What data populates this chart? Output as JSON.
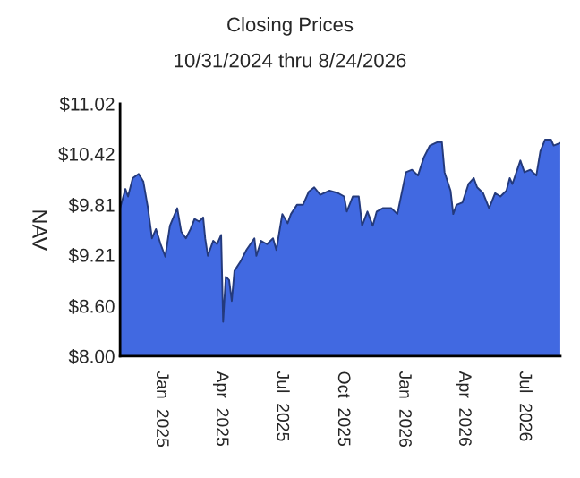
{
  "chart_data": {
    "type": "area",
    "title": "Closing Prices",
    "subtitle": "10/31/2024 thru 8/24/2026",
    "ylabel": "NAV",
    "x": [
      "2024-10-31",
      "2024-11-08",
      "2024-11-12",
      "2024-11-19",
      "2024-11-28",
      "2024-12-05",
      "2024-12-12",
      "2024-12-18",
      "2024-12-24",
      "2024-12-31",
      "2025-01-07",
      "2025-01-14",
      "2025-01-25",
      "2025-01-31",
      "2025-02-07",
      "2025-02-14",
      "2025-02-20",
      "2025-02-27",
      "2025-03-05",
      "2025-03-08",
      "2025-03-12",
      "2025-03-20",
      "2025-03-26",
      "2025-04-01",
      "2025-04-04",
      "2025-04-08",
      "2025-04-13",
      "2025-04-17",
      "2025-04-21",
      "2025-04-30",
      "2025-05-09",
      "2025-05-21",
      "2025-05-24",
      "2025-05-31",
      "2025-06-09",
      "2025-06-18",
      "2025-06-23",
      "2025-07-02",
      "2025-07-10",
      "2025-07-15",
      "2025-07-24",
      "2025-08-02",
      "2025-08-11",
      "2025-08-19",
      "2025-08-28",
      "2025-09-11",
      "2025-09-24",
      "2025-10-03",
      "2025-10-07",
      "2025-10-16",
      "2025-10-25",
      "2025-10-30",
      "2025-11-07",
      "2025-11-15",
      "2025-11-21",
      "2025-11-30",
      "2025-12-13",
      "2025-12-22",
      "2026-01-04",
      "2026-01-13",
      "2026-01-22",
      "2026-01-31",
      "2026-02-09",
      "2026-02-20",
      "2026-02-27",
      "2026-03-03",
      "2026-03-12",
      "2026-03-16",
      "2026-03-21",
      "2026-03-30",
      "2026-04-08",
      "2026-04-16",
      "2026-04-21",
      "2026-04-30",
      "2026-05-09",
      "2026-05-18",
      "2026-05-26",
      "2026-06-04",
      "2026-06-09",
      "2026-06-13",
      "2026-06-25",
      "2026-07-01",
      "2026-07-10",
      "2026-07-19",
      "2026-07-25",
      "2026-08-01",
      "2026-08-10",
      "2026-08-14",
      "2026-08-24"
    ],
    "series": [
      {
        "color": "#4169e1",
        "values": [
          9.77,
          10.0,
          9.91,
          10.13,
          10.18,
          10.09,
          9.77,
          9.41,
          9.52,
          9.34,
          9.19,
          9.56,
          9.77,
          9.49,
          9.41,
          9.52,
          9.64,
          9.61,
          9.66,
          9.41,
          9.2,
          9.38,
          9.34,
          9.45,
          8.41,
          8.95,
          8.91,
          8.66,
          9.02,
          9.13,
          9.27,
          9.41,
          9.2,
          9.38,
          9.34,
          9.41,
          9.27,
          9.7,
          9.59,
          9.7,
          9.81,
          9.81,
          9.97,
          10.02,
          9.93,
          9.98,
          9.95,
          9.91,
          9.73,
          9.91,
          9.91,
          9.56,
          9.73,
          9.56,
          9.73,
          9.77,
          9.77,
          9.7,
          10.2,
          10.23,
          10.16,
          10.38,
          10.52,
          10.56,
          10.56,
          10.2,
          9.98,
          9.7,
          9.81,
          9.84,
          10.06,
          10.13,
          10.02,
          9.95,
          9.77,
          9.95,
          9.91,
          9.98,
          10.13,
          10.06,
          10.34,
          10.2,
          10.23,
          10.16,
          10.45,
          10.59,
          10.59,
          10.52,
          10.55
        ]
      }
    ],
    "xlim": [
      "2024-10-31",
      "2026-08-24"
    ],
    "xticks": [
      {
        "value": "2025-01-01",
        "label": "Jan  2025"
      },
      {
        "value": "2025-04-01",
        "label": "Apr  2025"
      },
      {
        "value": "2025-07-01",
        "label": "Jul  2025"
      },
      {
        "value": "2025-10-01",
        "label": "Oct  2025"
      },
      {
        "value": "2026-01-01",
        "label": "Jan  2026"
      },
      {
        "value": "2026-04-01",
        "label": "Apr  2026"
      },
      {
        "value": "2026-07-01",
        "label": "Jul  2026"
      }
    ],
    "ylim": [
      8.0,
      11.02
    ],
    "yticks": [
      {
        "value": 8.0,
        "label": "$8.00"
      },
      {
        "value": 8.6,
        "label": "$8.60"
      },
      {
        "value": 9.21,
        "label": "$9.21"
      },
      {
        "value": 9.81,
        "label": "$9.81"
      },
      {
        "value": 10.42,
        "label": "$10.42"
      },
      {
        "value": 11.02,
        "label": "$11.02"
      }
    ],
    "grid": false
  }
}
